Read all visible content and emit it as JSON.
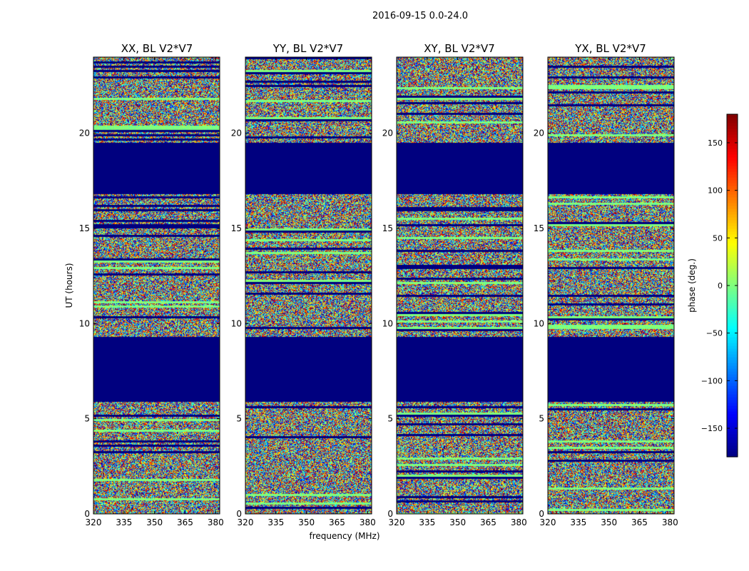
{
  "chart_data": {
    "type": "heatmap",
    "title": "2016-09-15 0.0-24.0",
    "xlabel": "frequency (MHz)",
    "ylabel": "UT (hours)",
    "xlim": [
      320,
      382
    ],
    "ylim": [
      0,
      24
    ],
    "x_ticks": [
      320,
      335,
      350,
      365,
      380
    ],
    "y_ticks": [
      0,
      5,
      10,
      15,
      20
    ],
    "panels": [
      {
        "name": "XX",
        "title": "XX, BL V2*V7"
      },
      {
        "name": "YY",
        "title": "YY, BL V2*V7"
      },
      {
        "name": "XY",
        "title": "XY, BL V2*V7"
      },
      {
        "name": "YX",
        "title": "YX, BL V2*V7"
      }
    ],
    "masked_value": -180,
    "flagged_ut_ranges": [
      [
        5.9,
        9.3
      ],
      [
        16.8,
        19.5
      ]
    ],
    "colorbar": {
      "label": "phase (deg.)",
      "range": [
        -180,
        180
      ],
      "ticks": [
        -150,
        -100,
        -50,
        0,
        50,
        100,
        150
      ],
      "colormap": "jet"
    }
  },
  "colors": {
    "masked": "#00007f",
    "axis": "#000000",
    "jet": [
      "#00007f",
      "#0000ff",
      "#007fff",
      "#00ffff",
      "#7fff7f",
      "#ffff00",
      "#ff7f00",
      "#ff0000",
      "#7f0000"
    ]
  }
}
